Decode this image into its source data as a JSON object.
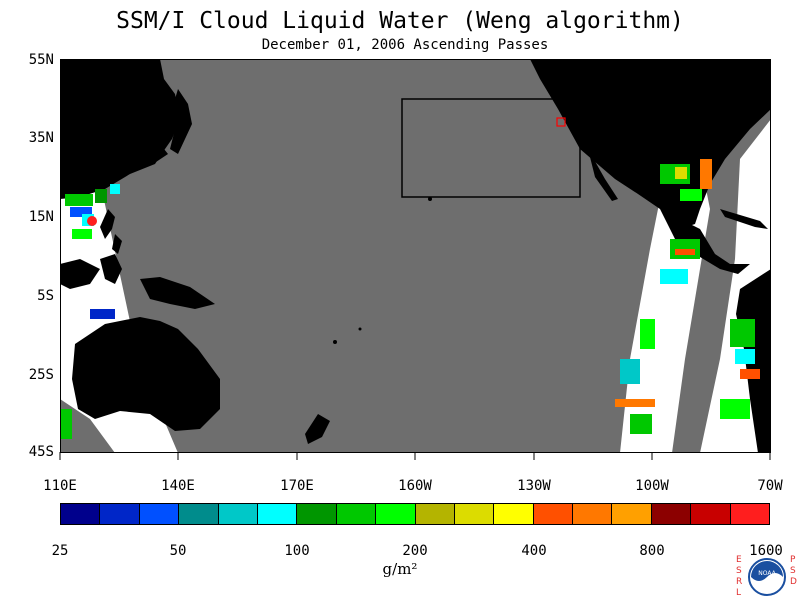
{
  "title": "SSM/I Cloud Liquid Water (Weng algorithm)",
  "subtitle": "December 01, 2006  Ascending Passes",
  "map": {
    "lat_labels": [
      "55N",
      "35N",
      "15N",
      "5S",
      "25S",
      "45S"
    ],
    "lon_labels": [
      "110E",
      "140E",
      "170E",
      "160W",
      "130W",
      "100W",
      "70W"
    ],
    "colors": {
      "land": "#000000",
      "no_data": "#6e6e6e",
      "clear": "#ffffff",
      "box_outline": "#000000",
      "marker": "#ff0000"
    }
  },
  "colorbar": {
    "colors": [
      "#00008c",
      "#0026c8",
      "#0050ff",
      "#008c8c",
      "#00c8c8",
      "#00ffff",
      "#009600",
      "#00c800",
      "#00ff00",
      "#b4b400",
      "#dcdc00",
      "#ffff00",
      "#ff5000",
      "#ff7800",
      "#ffa000",
      "#8c0000",
      "#c80000",
      "#ff1e1e"
    ],
    "tick_labels": [
      "25",
      "50",
      "100",
      "200",
      "400",
      "800",
      "1600"
    ],
    "units": "g/m²"
  },
  "logo": {
    "left_text": "ESRL",
    "right_text": "PSD",
    "badge_text": "NOAA"
  }
}
